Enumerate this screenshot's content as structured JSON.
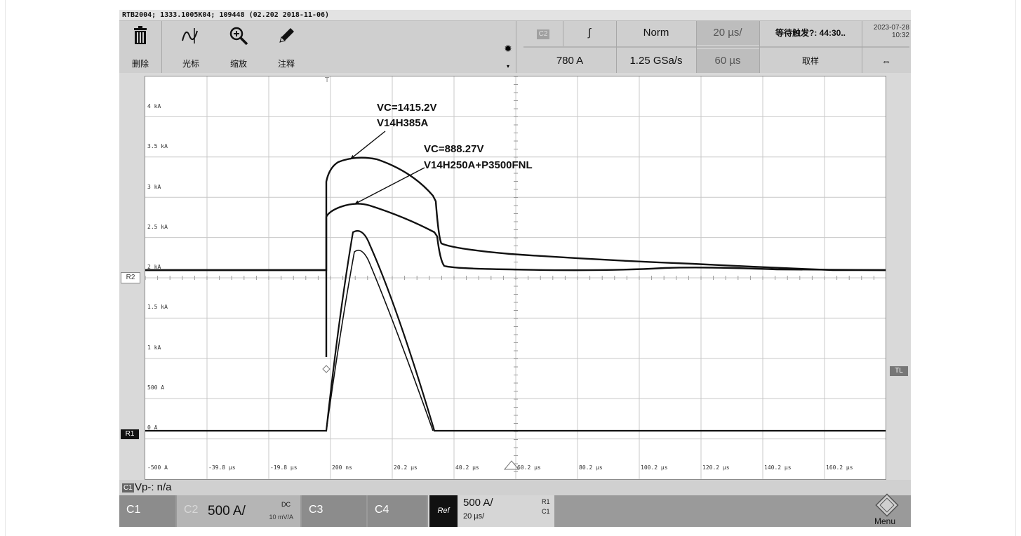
{
  "title_bar": "RTB2004; 1333.1005K04; 109448 (02.202 2018-11-06)",
  "toolbar": {
    "tools": [
      {
        "label": "删除",
        "icon": "trash-icon"
      },
      {
        "label": "光标",
        "icon": "cursor-wave-icon"
      },
      {
        "label": "缩放",
        "icon": "zoom-icon"
      },
      {
        "label": "注释",
        "icon": "pencil-icon"
      }
    ],
    "trigger_source": "C2",
    "trigger_slope": "∫",
    "trigger_mode": "Norm",
    "timebase": "20 µs/",
    "acq_status": "等待触发?: 44:30..",
    "datetime": [
      "2023-07-28",
      "10:32"
    ],
    "trigger_level": "780 A",
    "sample_rate": "1.25 GSa/s",
    "record_length": "60 µs",
    "acq_label": "取样"
  },
  "plot": {
    "y_labels": [
      "4 kA",
      "3.5 kA",
      "3 kA",
      "2.5 kA",
      "2 kA",
      "1.5 kA",
      "1 kA",
      "500 A",
      "0 A",
      "-500 A"
    ],
    "x_labels": [
      "-39.8 µs",
      "-19.8 µs",
      "200 ns",
      "20.2 µs",
      "40.2 µs",
      "60.2 µs",
      "80.2 µs",
      "100.2 µs",
      "120.2 µs",
      "140.2 µs",
      "160.2 µs"
    ],
    "annotations": [
      {
        "line1": "VC=1415.2V",
        "line2": "V14H385A"
      },
      {
        "line1": "VC=888.27V",
        "line2": "V14H250A+P3500FNL"
      }
    ],
    "markers": {
      "r2": "R2",
      "r1": "R1",
      "tl": "TL",
      "trigger": "T"
    }
  },
  "status": {
    "badge": "C1",
    "text": "Vp-: n/a"
  },
  "bottom": {
    "channels": [
      "C1",
      "C2",
      "C3",
      "C4"
    ],
    "c2_scale": "500 A/",
    "c2_coupling": "DC",
    "c2_probe": "10 mV/A",
    "ref_label": "Ref",
    "ref_scale": "500 A/",
    "ref_time": "20 µs/",
    "ref_r": "R1",
    "ref_c": "C1",
    "menu": "Menu"
  },
  "colors": {
    "trace": "#111111",
    "grid": "#c8c8c8",
    "bottom": "#9a9a9a",
    "ref": "#111111"
  }
}
